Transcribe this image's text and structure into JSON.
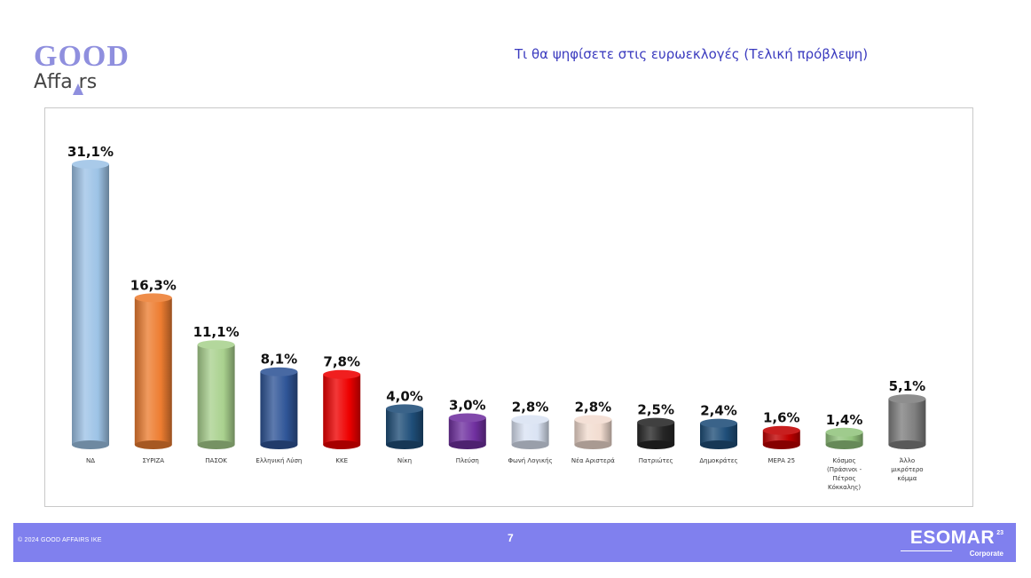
{
  "brand": {
    "line1": "GOOD",
    "line2": "Affa rs"
  },
  "title": "Τι θα ψηφίσετε στις ευρωεκλογές (Τελική πρόβλεψη)",
  "chart_data": {
    "type": "bar",
    "title": "Τι θα ψηφίσετε στις ευρωεκλογές (Τελική πρόβλεψη)",
    "ylim": [
      0,
      31.1
    ],
    "grid": false,
    "legend": "none",
    "categories": [
      [
        "Ν∆"
      ],
      [
        "ΣΥΡΙΖΑ"
      ],
      [
        "ΠΑΣΟΚ"
      ],
      [
        "Ελληνική Λύση"
      ],
      [
        "ΚΚΕ"
      ],
      [
        "Νίκη"
      ],
      [
        "Πλεύση"
      ],
      [
        "Φωνή Λογικής"
      ],
      [
        "Νέα Αριστερά"
      ],
      [
        "Πατριώτες"
      ],
      [
        "Δημοκράτες"
      ],
      [
        "ΜΕΡΑ 25"
      ],
      [
        "Κόσμος",
        "(Πράσινοι -",
        "Πέτρος",
        "Κόκκαλης)"
      ],
      [
        "Άλλο",
        "μικρότερο",
        "κόμμα"
      ]
    ],
    "values": [
      31.1,
      16.3,
      11.1,
      8.1,
      7.8,
      4.0,
      3.0,
      2.8,
      2.8,
      2.5,
      2.4,
      1.6,
      1.4,
      5.1
    ],
    "labels": [
      "31,1%",
      "16,3%",
      "11,1%",
      "8,1%",
      "7,8%",
      "4,0%",
      "3,0%",
      "2,8%",
      "2,8%",
      "2,5%",
      "2,4%",
      "1,6%",
      "1,4%",
      "5,1%"
    ],
    "colors": [
      "#9dc3e6",
      "#ed7d31",
      "#a9d18e",
      "#2f5597",
      "#ee0000",
      "#1f4e79",
      "#7030a0",
      "#dae3f3",
      "#f2dcd0",
      "#262626",
      "#1f4e79",
      "#c00000",
      "#92c47d",
      "#7f7f7f"
    ]
  },
  "footer": {
    "copyright": "© 2024 GOOD AFFAIRS IKE",
    "page_number": "7",
    "esomar": {
      "word": "ESOMAR",
      "superscript": "23",
      "sub": "Corporate"
    }
  }
}
